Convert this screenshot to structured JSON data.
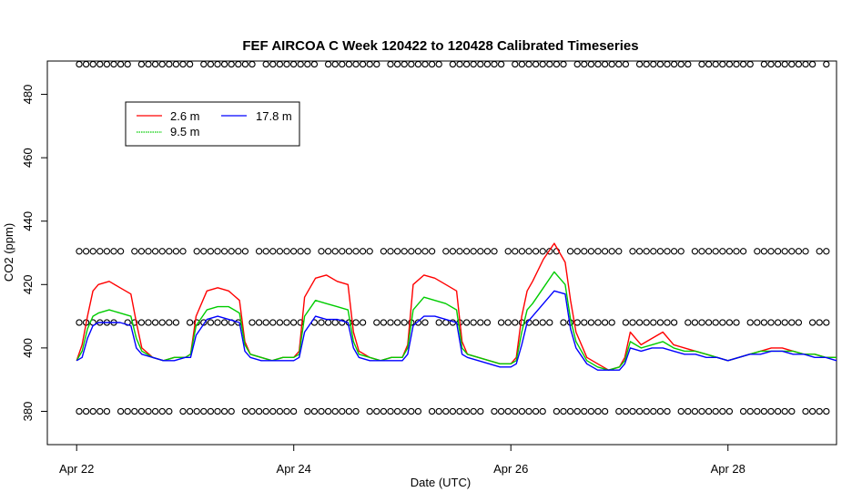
{
  "chart_data": {
    "type": "line",
    "title": "FEF AIRCOA C  Week 120422 to 120428  Calibrated Timeseries",
    "xlabel": "Date (UTC)",
    "ylabel": "CO2 (ppm)",
    "x_units": "days since Apr 22 00:00 UTC",
    "xlim": [
      -0.27,
      7.0
    ],
    "ylim": [
      369.5,
      490.5
    ],
    "x_ticks": [
      {
        "value": 0,
        "label": "Apr 22"
      },
      {
        "value": 2,
        "label": "Apr 24"
      },
      {
        "value": 4,
        "label": "Apr 26"
      },
      {
        "value": 6,
        "label": "Apr 28"
      }
    ],
    "y_ticks": [
      380,
      400,
      420,
      440,
      460,
      480
    ],
    "legend": {
      "position": "top-left",
      "entries": [
        {
          "name": "2.6 m",
          "color": "#ff0000"
        },
        {
          "name": "9.5 m",
          "color": "#00cc00"
        },
        {
          "name": "17.8 m",
          "color": "#0000ff"
        }
      ]
    },
    "series": [
      {
        "name": "2.6 m",
        "color": "#ff0000",
        "x": [
          0.0,
          0.05,
          0.1,
          0.15,
          0.2,
          0.3,
          0.4,
          0.5,
          0.55,
          0.6,
          0.7,
          0.8,
          0.9,
          1.0,
          1.05,
          1.1,
          1.2,
          1.3,
          1.4,
          1.5,
          1.55,
          1.6,
          1.7,
          1.8,
          1.9,
          2.0,
          2.05,
          2.1,
          2.2,
          2.3,
          2.4,
          2.5,
          2.55,
          2.6,
          2.7,
          2.8,
          2.9,
          3.0,
          3.05,
          3.1,
          3.2,
          3.3,
          3.4,
          3.5,
          3.55,
          3.6,
          3.7,
          3.8,
          3.9,
          4.0,
          4.05,
          4.1,
          4.15,
          4.2,
          4.3,
          4.4,
          4.5,
          4.55,
          4.6,
          4.7,
          4.8,
          4.9,
          5.0,
          5.05,
          5.1,
          5.2,
          5.3,
          5.4,
          5.5,
          5.6,
          5.7,
          5.8,
          5.9,
          6.0,
          6.1,
          6.2,
          6.3,
          6.4,
          6.5,
          6.6,
          6.7,
          6.8,
          6.9,
          7.0
        ],
        "y": [
          396,
          401,
          410,
          418,
          420,
          421,
          419,
          417,
          408,
          400,
          397,
          396,
          397,
          397,
          398,
          410,
          418,
          419,
          418,
          415,
          402,
          398,
          397,
          396,
          397,
          397,
          399,
          416,
          422,
          423,
          421,
          420,
          405,
          399,
          397,
          396,
          397,
          397,
          401,
          420,
          423,
          422,
          420,
          418,
          402,
          398,
          397,
          396,
          395,
          395,
          397,
          410,
          418,
          421,
          428,
          433,
          427,
          415,
          405,
          397,
          395,
          393,
          394,
          397,
          405,
          401,
          403,
          405,
          401,
          400,
          399,
          398,
          397,
          396,
          397,
          398,
          399,
          400,
          400,
          399,
          398,
          398,
          397,
          397
        ]
      },
      {
        "name": "9.5 m",
        "color": "#00cc00",
        "x": [
          0.0,
          0.05,
          0.1,
          0.15,
          0.2,
          0.3,
          0.4,
          0.5,
          0.55,
          0.6,
          0.7,
          0.8,
          0.9,
          1.0,
          1.05,
          1.1,
          1.2,
          1.3,
          1.4,
          1.5,
          1.55,
          1.6,
          1.7,
          1.8,
          1.9,
          2.0,
          2.05,
          2.1,
          2.2,
          2.3,
          2.4,
          2.5,
          2.55,
          2.6,
          2.7,
          2.8,
          2.9,
          3.0,
          3.05,
          3.1,
          3.2,
          3.3,
          3.4,
          3.5,
          3.55,
          3.6,
          3.7,
          3.8,
          3.9,
          4.0,
          4.05,
          4.1,
          4.15,
          4.2,
          4.3,
          4.4,
          4.5,
          4.55,
          4.6,
          4.7,
          4.8,
          4.9,
          5.0,
          5.05,
          5.1,
          5.2,
          5.3,
          5.4,
          5.5,
          5.6,
          5.7,
          5.8,
          5.9,
          6.0,
          6.1,
          6.2,
          6.3,
          6.4,
          6.5,
          6.6,
          6.7,
          6.8,
          6.9,
          7.0
        ],
        "y": [
          396,
          399,
          406,
          410,
          411,
          412,
          411,
          410,
          403,
          399,
          397,
          396,
          397,
          397,
          398,
          407,
          412,
          413,
          413,
          411,
          401,
          398,
          397,
          396,
          397,
          397,
          398,
          410,
          415,
          414,
          413,
          412,
          402,
          398,
          397,
          396,
          397,
          397,
          400,
          412,
          416,
          415,
          414,
          412,
          400,
          398,
          397,
          396,
          395,
          395,
          396,
          405,
          412,
          414,
          419,
          424,
          420,
          409,
          402,
          396,
          394,
          393,
          394,
          396,
          402,
          400,
          401,
          402,
          400,
          399,
          399,
          398,
          397,
          396,
          397,
          398,
          399,
          399,
          399,
          399,
          398,
          398,
          397,
          397
        ]
      },
      {
        "name": "17.8 m",
        "color": "#0000ff",
        "x": [
          0.0,
          0.05,
          0.1,
          0.15,
          0.2,
          0.3,
          0.4,
          0.5,
          0.55,
          0.6,
          0.7,
          0.8,
          0.9,
          1.0,
          1.05,
          1.1,
          1.2,
          1.3,
          1.4,
          1.5,
          1.55,
          1.6,
          1.7,
          1.8,
          1.9,
          2.0,
          2.05,
          2.1,
          2.2,
          2.3,
          2.4,
          2.5,
          2.55,
          2.6,
          2.7,
          2.8,
          2.9,
          3.0,
          3.05,
          3.1,
          3.2,
          3.3,
          3.4,
          3.5,
          3.55,
          3.6,
          3.7,
          3.8,
          3.9,
          4.0,
          4.05,
          4.1,
          4.15,
          4.2,
          4.3,
          4.4,
          4.5,
          4.55,
          4.6,
          4.7,
          4.8,
          4.9,
          5.0,
          5.05,
          5.1,
          5.2,
          5.3,
          5.4,
          5.5,
          5.6,
          5.7,
          5.8,
          5.9,
          6.0,
          6.1,
          6.2,
          6.3,
          6.4,
          6.5,
          6.6,
          6.7,
          6.8,
          6.9,
          7.0
        ],
        "y": [
          396,
          397,
          403,
          407,
          408,
          408,
          408,
          407,
          400,
          398,
          397,
          396,
          396,
          397,
          397,
          404,
          409,
          410,
          409,
          408,
          399,
          397,
          396,
          396,
          396,
          396,
          397,
          405,
          410,
          409,
          409,
          408,
          400,
          397,
          396,
          396,
          396,
          396,
          398,
          407,
          410,
          410,
          409,
          408,
          398,
          397,
          396,
          395,
          394,
          394,
          395,
          401,
          408,
          410,
          414,
          418,
          417,
          406,
          400,
          395,
          393,
          393,
          393,
          395,
          400,
          399,
          400,
          400,
          399,
          398,
          398,
          397,
          397,
          396,
          397,
          398,
          398,
          399,
          399,
          398,
          398,
          397,
          397,
          396
        ]
      }
    ],
    "reference_rows": [
      {
        "y": 489.5,
        "marker": "o"
      },
      {
        "y": 430.5,
        "marker": "o"
      },
      {
        "y": 408.0,
        "marker": "o"
      },
      {
        "y": 380.0,
        "marker": "o"
      }
    ]
  }
}
